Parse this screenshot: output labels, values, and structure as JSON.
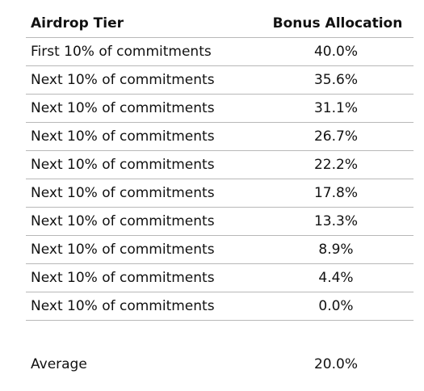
{
  "table": {
    "headers": {
      "tier": "Airdrop Tier",
      "allocation": "Bonus Allocation"
    },
    "rows": [
      {
        "tier": "First 10% of commitments",
        "allocation": "40.0%"
      },
      {
        "tier": "Next 10% of commitments",
        "allocation": "35.6%"
      },
      {
        "tier": "Next 10% of commitments",
        "allocation": "31.1%"
      },
      {
        "tier": "Next 10% of commitments",
        "allocation": "26.7%"
      },
      {
        "tier": "Next 10% of commitments",
        "allocation": "22.2%"
      },
      {
        "tier": "Next 10% of commitments",
        "allocation": "17.8%"
      },
      {
        "tier": "Next 10% of commitments",
        "allocation": "13.3%"
      },
      {
        "tier": "Next 10% of commitments",
        "allocation": "8.9%"
      },
      {
        "tier": "Next 10% of commitments",
        "allocation": "4.4%"
      },
      {
        "tier": "Next 10% of commitments",
        "allocation": "0.0%"
      }
    ],
    "average": {
      "label": "Average",
      "value": "20.0%"
    }
  }
}
